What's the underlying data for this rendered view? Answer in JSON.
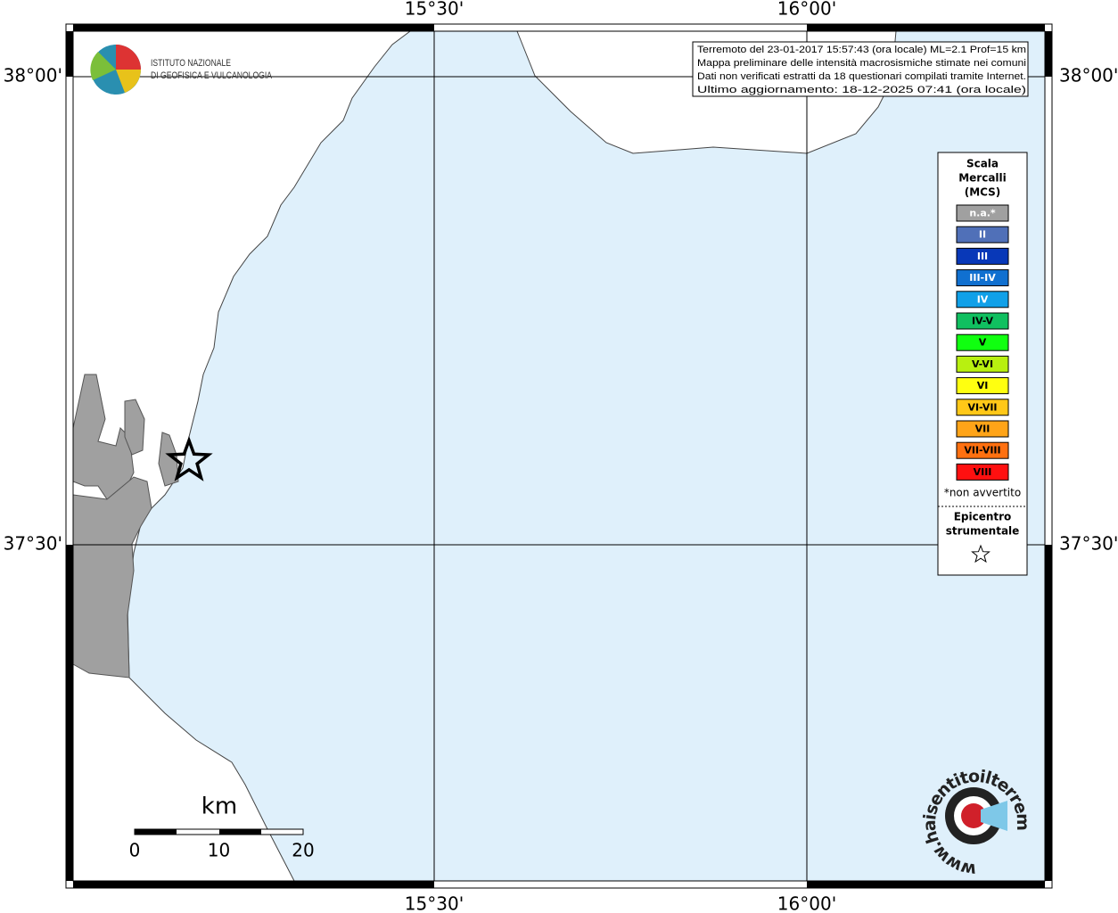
{
  "grid_labels": {
    "top": [
      "15°30'",
      "16°00'"
    ],
    "bottom": [
      "15°30'",
      "16°00'"
    ],
    "left": [
      "38°00'",
      "37°30'"
    ],
    "right": [
      "38°00'",
      "37°30'"
    ]
  },
  "logo": {
    "lines": [
      "ISTITUTO NAZIONALE",
      "DI GEOFISICA E VULCANOLOGIA"
    ]
  },
  "info_box": {
    "lines": [
      "Terremoto del 23-01-2017 15:57:43 (ora locale) ML=2.1 Prof=15 km",
      "Mappa preliminare delle intensità macrosismiche stimate nei comuni",
      "Dati non verificati estratti da 18 questionari compilati tramite Internet.",
      "Ultimo aggiornamento: 18-12-2025 07:41 (ora locale)"
    ]
  },
  "legend": {
    "title_lines": [
      "Scala",
      "Mercalli",
      "(MCS)"
    ],
    "items": [
      {
        "label": "n.a.*",
        "color": "#a0a0a0",
        "text_color": "#ffffff"
      },
      {
        "label": "II",
        "color": "#5070b8",
        "text_color": "#ffffff"
      },
      {
        "label": "III",
        "color": "#0838b8",
        "text_color": "#ffffff"
      },
      {
        "label": "III-IV",
        "color": "#1070d0",
        "text_color": "#ffffff"
      },
      {
        "label": "IV",
        "color": "#10a0e8",
        "text_color": "#ffffff"
      },
      {
        "label": "IV-V",
        "color": "#10c060",
        "text_color": "#000000"
      },
      {
        "label": "V",
        "color": "#10ff10",
        "text_color": "#000000"
      },
      {
        "label": "V-VI",
        "color": "#b8f010",
        "text_color": "#000000"
      },
      {
        "label": "VI",
        "color": "#ffff10",
        "text_color": "#000000"
      },
      {
        "label": "VI-VII",
        "color": "#ffc818",
        "text_color": "#000000"
      },
      {
        "label": "VII",
        "color": "#ffa418",
        "text_color": "#000000"
      },
      {
        "label": "VII-VIII",
        "color": "#ff7010",
        "text_color": "#000000"
      },
      {
        "label": "VIII",
        "color": "#ff1010",
        "text_color": "#000000"
      }
    ],
    "note": "*non avvertito",
    "epicenter_lines": [
      "Epicentro",
      "strumentale"
    ]
  },
  "scale_bar": {
    "unit": "km",
    "labels": [
      "0",
      "10",
      "20"
    ]
  },
  "badge": {
    "text": "www.haisentitoilterremoto.it"
  }
}
